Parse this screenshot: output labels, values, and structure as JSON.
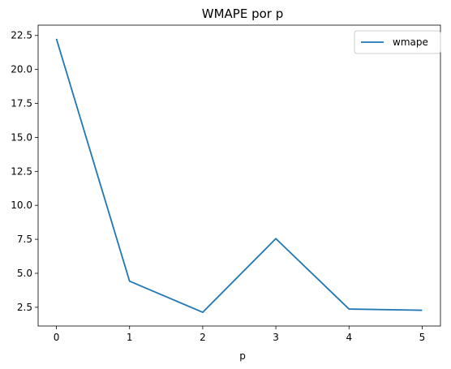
{
  "chart_data": {
    "type": "line",
    "title": "WMAPE por p",
    "xlabel": "p",
    "ylabel": "",
    "x": [
      0,
      1,
      2,
      3,
      4,
      5
    ],
    "series": [
      {
        "name": "wmape",
        "values": [
          22.25,
          4.42,
          2.13,
          7.55,
          2.37,
          2.28
        ],
        "color": "#1f77b4"
      }
    ],
    "xlim": [
      -0.25,
      5.25
    ],
    "ylim": [
      1.12,
      23.26
    ],
    "xticks": [
      0,
      1,
      2,
      3,
      4,
      5
    ],
    "xtick_labels": [
      "0",
      "1",
      "2",
      "3",
      "4",
      "5"
    ],
    "yticks": [
      2.5,
      5.0,
      7.5,
      10.0,
      12.5,
      15.0,
      17.5,
      20.0,
      22.5
    ],
    "ytick_labels": [
      "2.5",
      "5.0",
      "7.5",
      "10.0",
      "12.5",
      "15.0",
      "17.5",
      "20.0",
      "22.5"
    ],
    "grid": false,
    "legend": "top-right"
  }
}
